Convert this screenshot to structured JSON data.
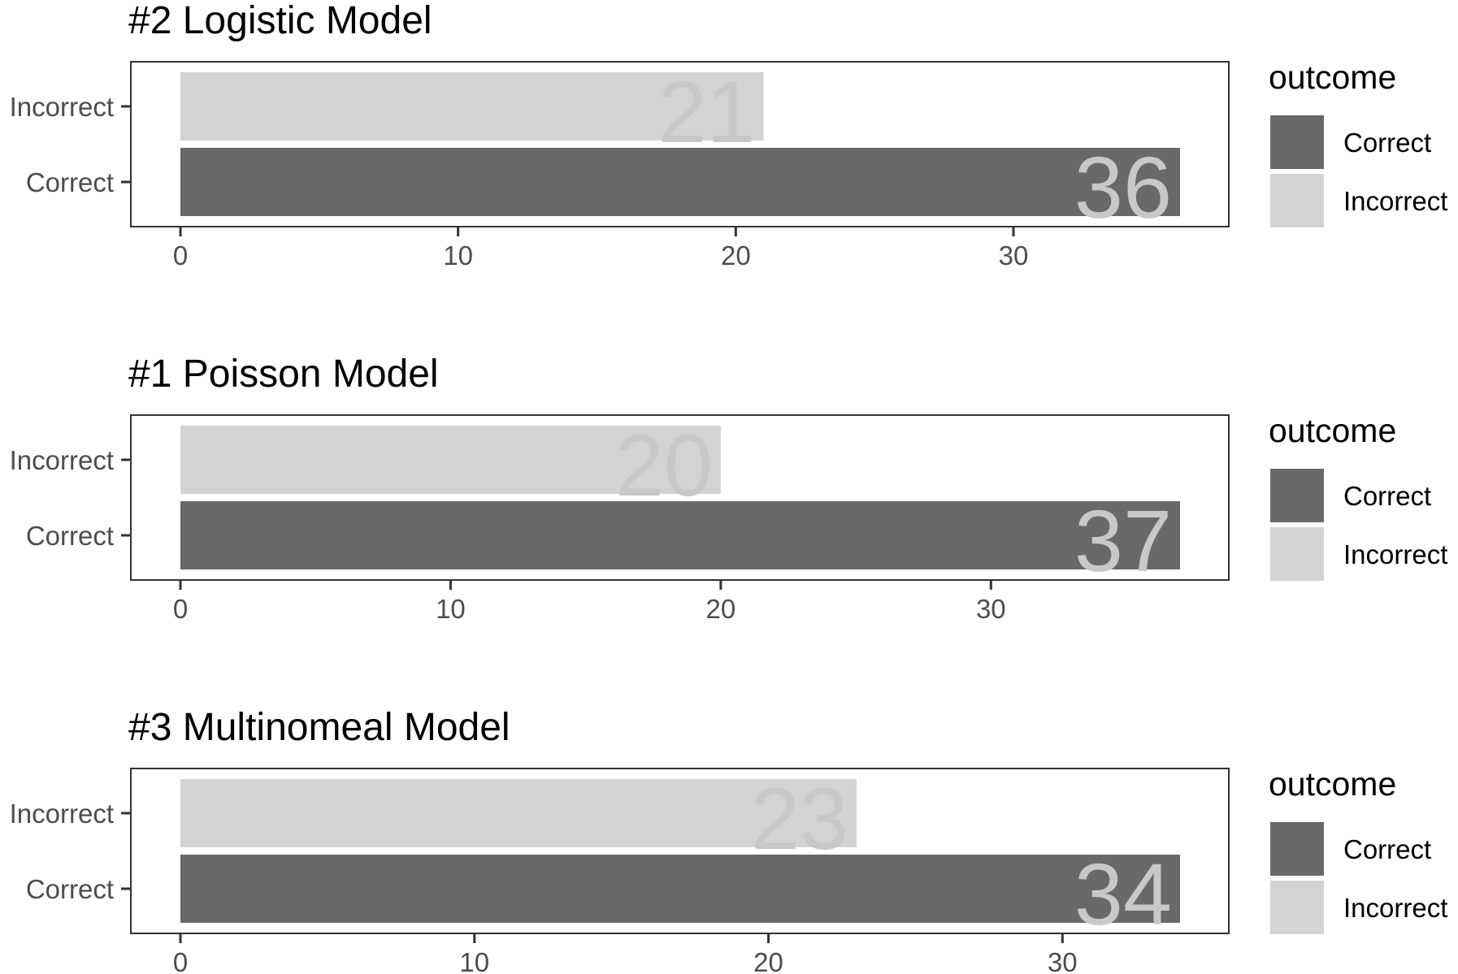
{
  "chart_data": [
    {
      "type": "bar",
      "orientation": "horizontal",
      "title": "#2 Logistic Model",
      "categories": [
        "Correct",
        "Incorrect"
      ],
      "values": [
        36,
        21
      ],
      "colors": [
        "#696969",
        "#d3d3d3"
      ],
      "data_labels": [
        "36",
        "21"
      ],
      "xlim": [
        0,
        36
      ],
      "xticks": [
        0,
        10,
        20,
        30
      ],
      "grid": false,
      "legend": {
        "title": "outcome",
        "position": "right",
        "items": [
          "Correct",
          "Incorrect"
        ]
      }
    },
    {
      "type": "bar",
      "orientation": "horizontal",
      "title": "#1 Poisson Model",
      "categories": [
        "Correct",
        "Incorrect"
      ],
      "values": [
        37,
        20
      ],
      "colors": [
        "#696969",
        "#d3d3d3"
      ],
      "data_labels": [
        "37",
        "20"
      ],
      "xlim": [
        0,
        37
      ],
      "xticks": [
        0,
        10,
        20,
        30
      ],
      "grid": false,
      "legend": {
        "title": "outcome",
        "position": "right",
        "items": [
          "Correct",
          "Incorrect"
        ]
      }
    },
    {
      "type": "bar",
      "orientation": "horizontal",
      "title": "#3 Multinomeal Model",
      "categories": [
        "Correct",
        "Incorrect"
      ],
      "values": [
        34,
        23
      ],
      "colors": [
        "#696969",
        "#d3d3d3"
      ],
      "data_labels": [
        "34",
        "23"
      ],
      "xlim": [
        0,
        34
      ],
      "xticks": [
        0,
        10,
        20,
        30
      ],
      "grid": false,
      "legend": {
        "title": "outcome",
        "position": "right",
        "items": [
          "Correct",
          "Incorrect"
        ]
      }
    }
  ],
  "style": {
    "label_color": "#c8c8c8",
    "axis_text_color": "#4d4d4d",
    "title_color": "#000000",
    "panel_border_color": "#333333"
  }
}
